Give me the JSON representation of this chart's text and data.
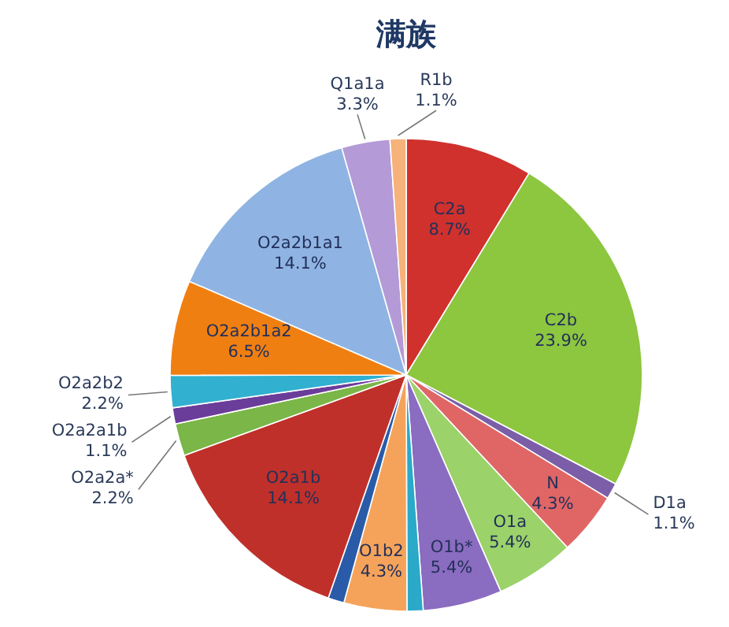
{
  "chart_data": {
    "type": "pie",
    "title": "满族",
    "categories": [
      "C2a",
      "C2b",
      "D1a",
      "N",
      "O1a",
      "O1b*",
      null,
      "O1b2",
      null,
      "O2a1b",
      "O2a2a*",
      "O2a2a1b",
      "O2a2b2",
      "O2a2b1a2",
      "O2a2b1a1",
      "Q1a1a",
      "R1b"
    ],
    "values": [
      8.7,
      23.9,
      1.1,
      4.3,
      5.4,
      5.4,
      1.1,
      4.3,
      1.1,
      14.1,
      2.2,
      1.1,
      2.2,
      6.5,
      14.1,
      3.3,
      1.1
    ],
    "value_labels": [
      "8.7%",
      "23.9%",
      "1.1%",
      "4.3%",
      "5.4%",
      "5.4%",
      null,
      "4.3%",
      null,
      "14.1%",
      "2.2%",
      "1.1%",
      "2.2%",
      "6.5%",
      "14.1%",
      "3.3%",
      "1.1%"
    ],
    "colors": [
      "#d0312d",
      "#8dc63f",
      "#7b5ea7",
      "#e06666",
      "#9bd26a",
      "#8a6cc0",
      "#2aa9c9",
      "#f5a35a",
      "#2a5ba8",
      "#c0302a",
      "#7ab648",
      "#6a3d9a",
      "#31b0d0",
      "#f07f12",
      "#8fb4e3",
      "#b49ad6",
      "#f6b27a"
    ],
    "legend": false
  }
}
